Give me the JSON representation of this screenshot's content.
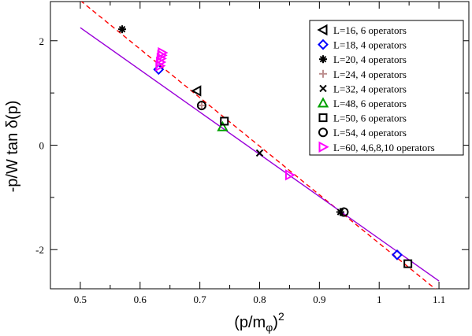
{
  "chart_data": {
    "type": "scatter",
    "title": "",
    "xlabel": "(p/m",
    "xlabel_sub": "φ",
    "xlabel_sup": "2",
    "xlabel_close": ")",
    "ylabel": "-p/W tan δ(p)",
    "xlim": [
      0.45,
      1.15
    ],
    "ylim": [
      -2.75,
      2.75
    ],
    "x_ticks": [
      0.5,
      0.6,
      0.7,
      0.8,
      0.9,
      1.0,
      1.1
    ],
    "x_tick_labels": [
      "0.5",
      "0.6",
      "0.7",
      "0.8",
      "0.9",
      "1",
      "1.1"
    ],
    "y_ticks": [
      2,
      0,
      -2
    ],
    "y_tick_labels": [
      "2",
      "0",
      "-2"
    ],
    "grid": false,
    "legend_position": "top-right",
    "series": [
      {
        "name": "L=16, 6 operators",
        "marker": "triangle-left-open",
        "color": "#000000",
        "points": [
          [
            0.695,
            1.04
          ]
        ]
      },
      {
        "name": "L=18, 4 operators",
        "marker": "diamond-open",
        "color": "#0000ff",
        "points": [
          [
            0.631,
            1.45
          ],
          [
            1.03,
            -2.1
          ]
        ]
      },
      {
        "name": "L=20, 4 operators",
        "marker": "star",
        "color": "#000000",
        "points": [
          [
            0.57,
            2.22
          ],
          [
            0.935,
            -1.28
          ]
        ]
      },
      {
        "name": "L=24, 4 operators",
        "marker": "plus",
        "color": "#bc8f8f",
        "points": [
          [
            0.703,
            0.76
          ]
        ]
      },
      {
        "name": "L=32, 4 operators",
        "marker": "x",
        "color": "#000000",
        "points": [
          [
            0.8,
            -0.15
          ]
        ]
      },
      {
        "name": "L=48, 6 operators",
        "marker": "triangle-up-open",
        "color": "#00a000",
        "points": [
          [
            0.738,
            0.35
          ]
        ]
      },
      {
        "name": "L=50, 6 operators",
        "marker": "square-open",
        "color": "#000000",
        "points": [
          [
            0.741,
            0.46
          ],
          [
            1.048,
            -2.27
          ]
        ]
      },
      {
        "name": "L=54, 4 operators",
        "marker": "circle-open",
        "color": "#000000",
        "points": [
          [
            0.703,
            0.76
          ],
          [
            0.941,
            -1.28
          ]
        ]
      },
      {
        "name": "L=60, 4,6,8,10 operators",
        "marker": "triangle-right-open",
        "color": "#ff00ff",
        "points": [
          [
            0.633,
            1.52
          ],
          [
            0.634,
            1.59
          ],
          [
            0.635,
            1.66
          ],
          [
            0.636,
            1.72
          ],
          [
            0.637,
            1.77
          ],
          [
            0.85,
            -0.57
          ]
        ]
      }
    ],
    "lines": [
      {
        "style": "dashed",
        "color": "#ff0000",
        "x": [
          0.5,
          1.1
        ],
        "y": [
          2.77,
          -2.81
        ]
      },
      {
        "style": "solid",
        "color": "#9a00d9",
        "x": [
          0.5,
          1.1
        ],
        "y": [
          2.25,
          -2.6
        ]
      }
    ]
  }
}
